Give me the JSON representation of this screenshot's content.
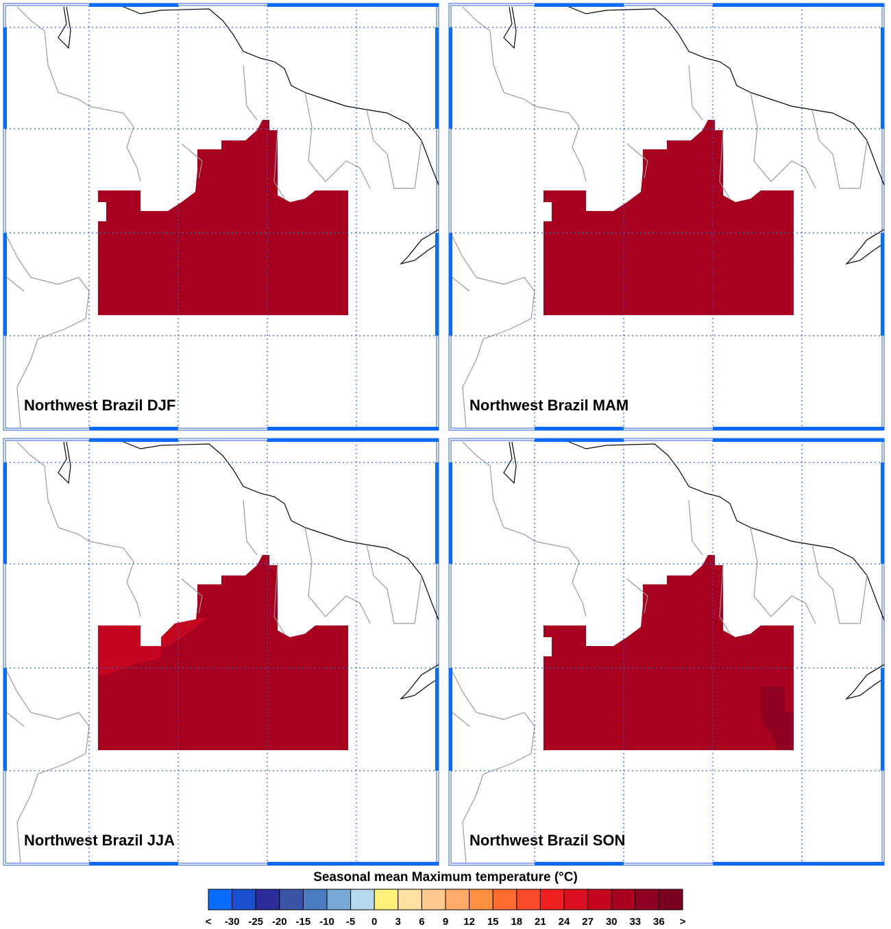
{
  "panels": [
    {
      "title": "Northwest Brazil DJF"
    },
    {
      "title": "Northwest Brazil MAM"
    },
    {
      "title": "Northwest Brazil JJA"
    },
    {
      "title": "Northwest Brazil SON"
    }
  ],
  "colorbar": {
    "title": "Seasonal mean Maximum temperature (°C)",
    "labels": [
      "<",
      "-30",
      "-25",
      "-20",
      "-15",
      "-10",
      "-5",
      "0",
      "3",
      "6",
      "9",
      "12",
      "15",
      "18",
      "21",
      "24",
      "27",
      "30",
      "33",
      "36",
      ">"
    ],
    "colors": [
      "#0a6cff",
      "#1a4fd0",
      "#2c2c9a",
      "#3a55a8",
      "#4a7abf",
      "#78a8d6",
      "#b8d8ee",
      "#fff07a",
      "#ffe0a0",
      "#ffc88c",
      "#ffaa66",
      "#ff9040",
      "#ff6a30",
      "#f94a2a",
      "#ee2020",
      "#dd1020",
      "#c4061f",
      "#a8001f",
      "#900020",
      "#7a0020"
    ]
  }
}
